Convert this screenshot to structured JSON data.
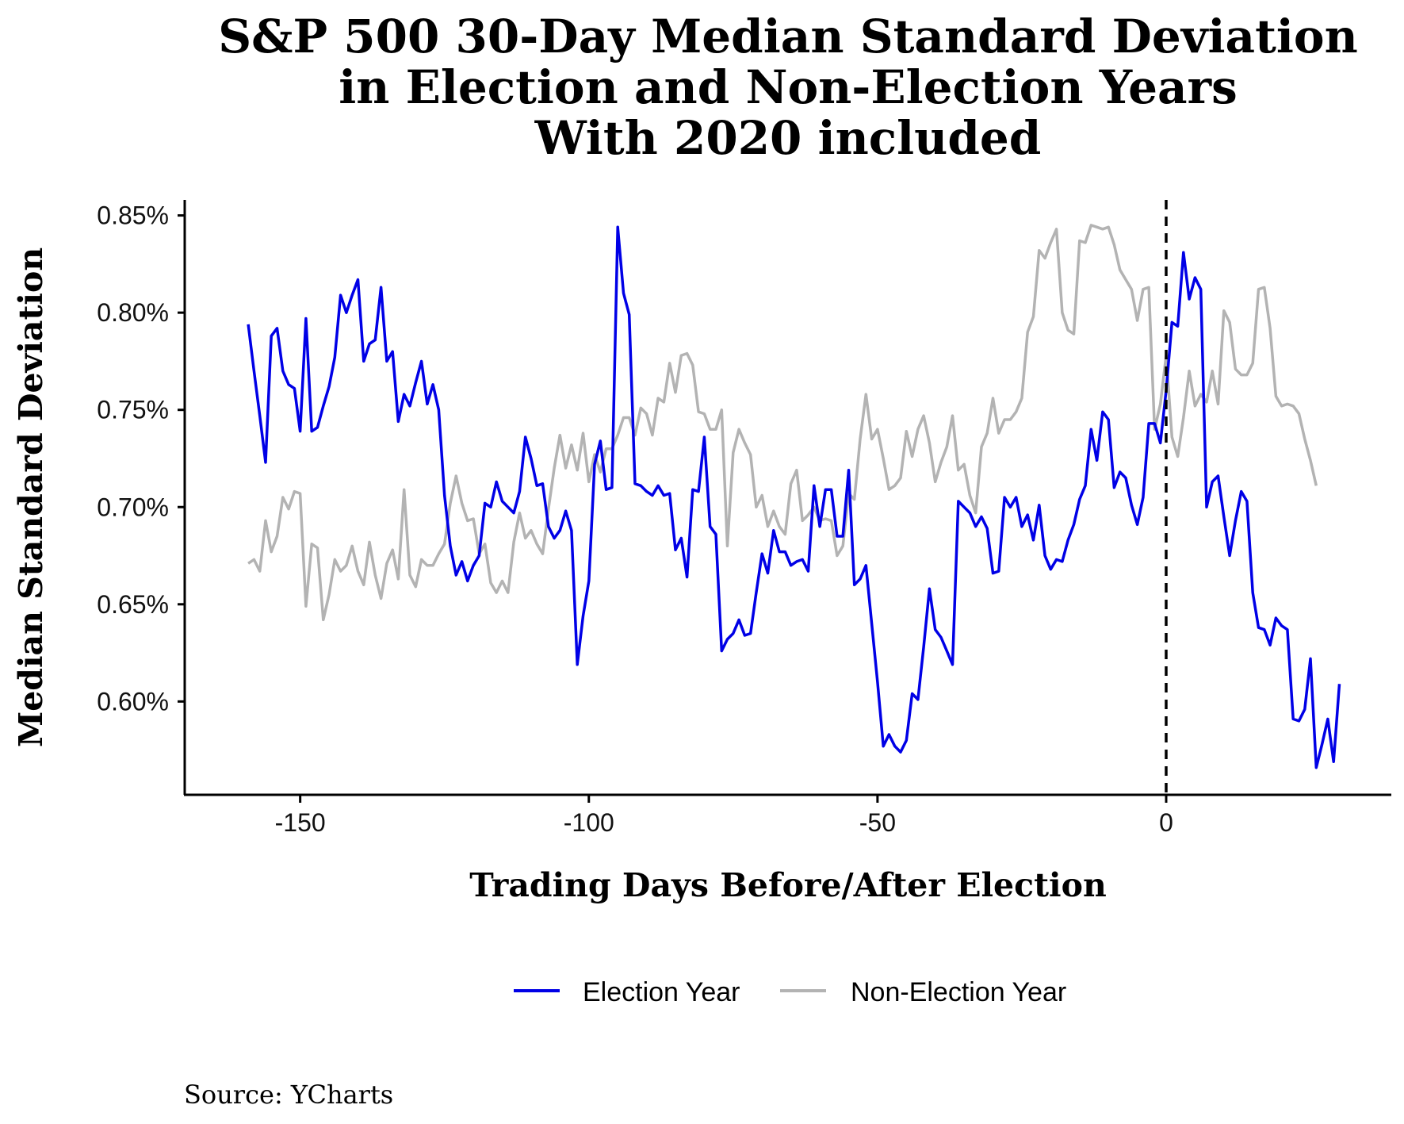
{
  "chart_data": {
    "type": "line",
    "title_lines": [
      "S&P 500 30-Day Median Standard Deviation",
      "in Election and Non-Election Years",
      "With 2020 included"
    ],
    "xlabel": "Trading Days Before/After Election",
    "ylabel": "Median Standard Deviation",
    "source": "Source:  YCharts",
    "xlim": [
      -170,
      39
    ],
    "ylim": [
      0.552,
      0.858
    ],
    "x_ticks": [
      -150,
      -100,
      -50,
      0
    ],
    "x_tick_labels": [
      "-150",
      "-100",
      "-50",
      "0"
    ],
    "y_ticks": [
      0.6,
      0.65,
      0.7,
      0.75,
      0.8,
      0.85
    ],
    "y_tick_labels": [
      "0.60%",
      "0.65%",
      "0.70%",
      "0.75%",
      "0.80%",
      "0.85%"
    ],
    "vline_x": 0,
    "grid": false,
    "legend_position": "bottom",
    "series": [
      {
        "name": "Election Year",
        "color": "#0000e6",
        "x_start": -159,
        "values": [
          0.794,
          0.77,
          0.747,
          0.723,
          0.788,
          0.792,
          0.77,
          0.763,
          0.761,
          0.739,
          0.797,
          0.739,
          0.741,
          0.752,
          0.762,
          0.777,
          0.809,
          0.8,
          0.809,
          0.817,
          0.775,
          0.784,
          0.786,
          0.813,
          0.775,
          0.78,
          0.744,
          0.758,
          0.752,
          0.764,
          0.775,
          0.753,
          0.763,
          0.75,
          0.706,
          0.68,
          0.665,
          0.672,
          0.662,
          0.67,
          0.675,
          0.702,
          0.7,
          0.713,
          0.703,
          0.7,
          0.697,
          0.708,
          0.736,
          0.725,
          0.711,
          0.712,
          0.69,
          0.684,
          0.688,
          0.698,
          0.688,
          0.619,
          0.644,
          0.662,
          0.722,
          0.734,
          0.709,
          0.71,
          0.844,
          0.81,
          0.799,
          0.712,
          0.711,
          0.708,
          0.706,
          0.711,
          0.706,
          0.707,
          0.678,
          0.684,
          0.664,
          0.709,
          0.708,
          0.736,
          0.69,
          0.686,
          0.626,
          0.632,
          0.635,
          0.642,
          0.634,
          0.635,
          0.656,
          0.676,
          0.666,
          0.688,
          0.677,
          0.677,
          0.67,
          0.672,
          0.673,
          0.667,
          0.711,
          0.69,
          0.709,
          0.709,
          0.685,
          0.685,
          0.719,
          0.66,
          0.663,
          0.67,
          0.64,
          0.61,
          0.577,
          0.583,
          0.577,
          0.574,
          0.58,
          0.604,
          0.601,
          0.628,
          0.658,
          0.637,
          0.633,
          0.626,
          0.619,
          0.703,
          0.7,
          0.697,
          0.69,
          0.695,
          0.689,
          0.666,
          0.667,
          0.705,
          0.7,
          0.705,
          0.69,
          0.696,
          0.683,
          0.701,
          0.675,
          0.668,
          0.673,
          0.672,
          0.683,
          0.691,
          0.704,
          0.711,
          0.74,
          0.724,
          0.749,
          0.745,
          0.71,
          0.718,
          0.715,
          0.701,
          0.691,
          0.705,
          0.743,
          0.743,
          0.733,
          0.76,
          0.795,
          0.793,
          0.831,
          0.807,
          0.818,
          0.812,
          0.7,
          0.713,
          0.716,
          0.695,
          0.675,
          0.693,
          0.708,
          0.703,
          0.656,
          0.638,
          0.637,
          0.629,
          0.643,
          0.639,
          0.637,
          0.591,
          0.59,
          0.596,
          0.622,
          0.566,
          0.578,
          0.591,
          0.569,
          0.609
        ]
      },
      {
        "name": "Non-Election Year",
        "color": "#b3b3b3",
        "x_start": -159,
        "values": [
          0.671,
          0.673,
          0.667,
          0.693,
          0.677,
          0.685,
          0.705,
          0.699,
          0.708,
          0.707,
          0.649,
          0.681,
          0.679,
          0.642,
          0.655,
          0.673,
          0.667,
          0.67,
          0.68,
          0.667,
          0.66,
          0.682,
          0.665,
          0.653,
          0.671,
          0.678,
          0.663,
          0.709,
          0.665,
          0.659,
          0.673,
          0.67,
          0.67,
          0.676,
          0.681,
          0.702,
          0.716,
          0.702,
          0.693,
          0.694,
          0.676,
          0.681,
          0.661,
          0.656,
          0.662,
          0.656,
          0.682,
          0.697,
          0.684,
          0.688,
          0.681,
          0.676,
          0.699,
          0.72,
          0.737,
          0.72,
          0.732,
          0.719,
          0.738,
          0.713,
          0.727,
          0.718,
          0.73,
          0.73,
          0.737,
          0.746,
          0.746,
          0.737,
          0.751,
          0.748,
          0.737,
          0.756,
          0.754,
          0.774,
          0.759,
          0.778,
          0.779,
          0.773,
          0.749,
          0.748,
          0.74,
          0.74,
          0.75,
          0.68,
          0.728,
          0.74,
          0.733,
          0.727,
          0.7,
          0.706,
          0.69,
          0.698,
          0.69,
          0.686,
          0.712,
          0.719,
          0.693,
          0.696,
          0.7,
          0.693,
          0.694,
          0.693,
          0.675,
          0.68,
          0.707,
          0.704,
          0.735,
          0.758,
          0.735,
          0.74,
          0.725,
          0.709,
          0.711,
          0.715,
          0.739,
          0.726,
          0.74,
          0.747,
          0.733,
          0.713,
          0.723,
          0.731,
          0.747,
          0.719,
          0.722,
          0.706,
          0.697,
          0.731,
          0.738,
          0.756,
          0.738,
          0.745,
          0.745,
          0.749,
          0.756,
          0.79,
          0.798,
          0.832,
          0.828,
          0.836,
          0.843,
          0.8,
          0.791,
          0.789,
          0.837,
          0.836,
          0.845,
          0.844,
          0.843,
          0.844,
          0.835,
          0.822,
          0.817,
          0.812,
          0.796,
          0.812,
          0.813,
          0.74,
          0.753,
          0.778,
          0.736,
          0.726,
          0.746,
          0.77,
          0.752,
          0.758,
          0.754,
          0.77,
          0.753,
          0.801,
          0.795,
          0.771,
          0.768,
          0.768,
          0.774,
          0.812,
          0.813,
          0.792,
          0.757,
          0.752,
          0.753,
          0.752,
          0.748,
          0.735,
          0.724,
          0.711
        ]
      }
    ]
  }
}
